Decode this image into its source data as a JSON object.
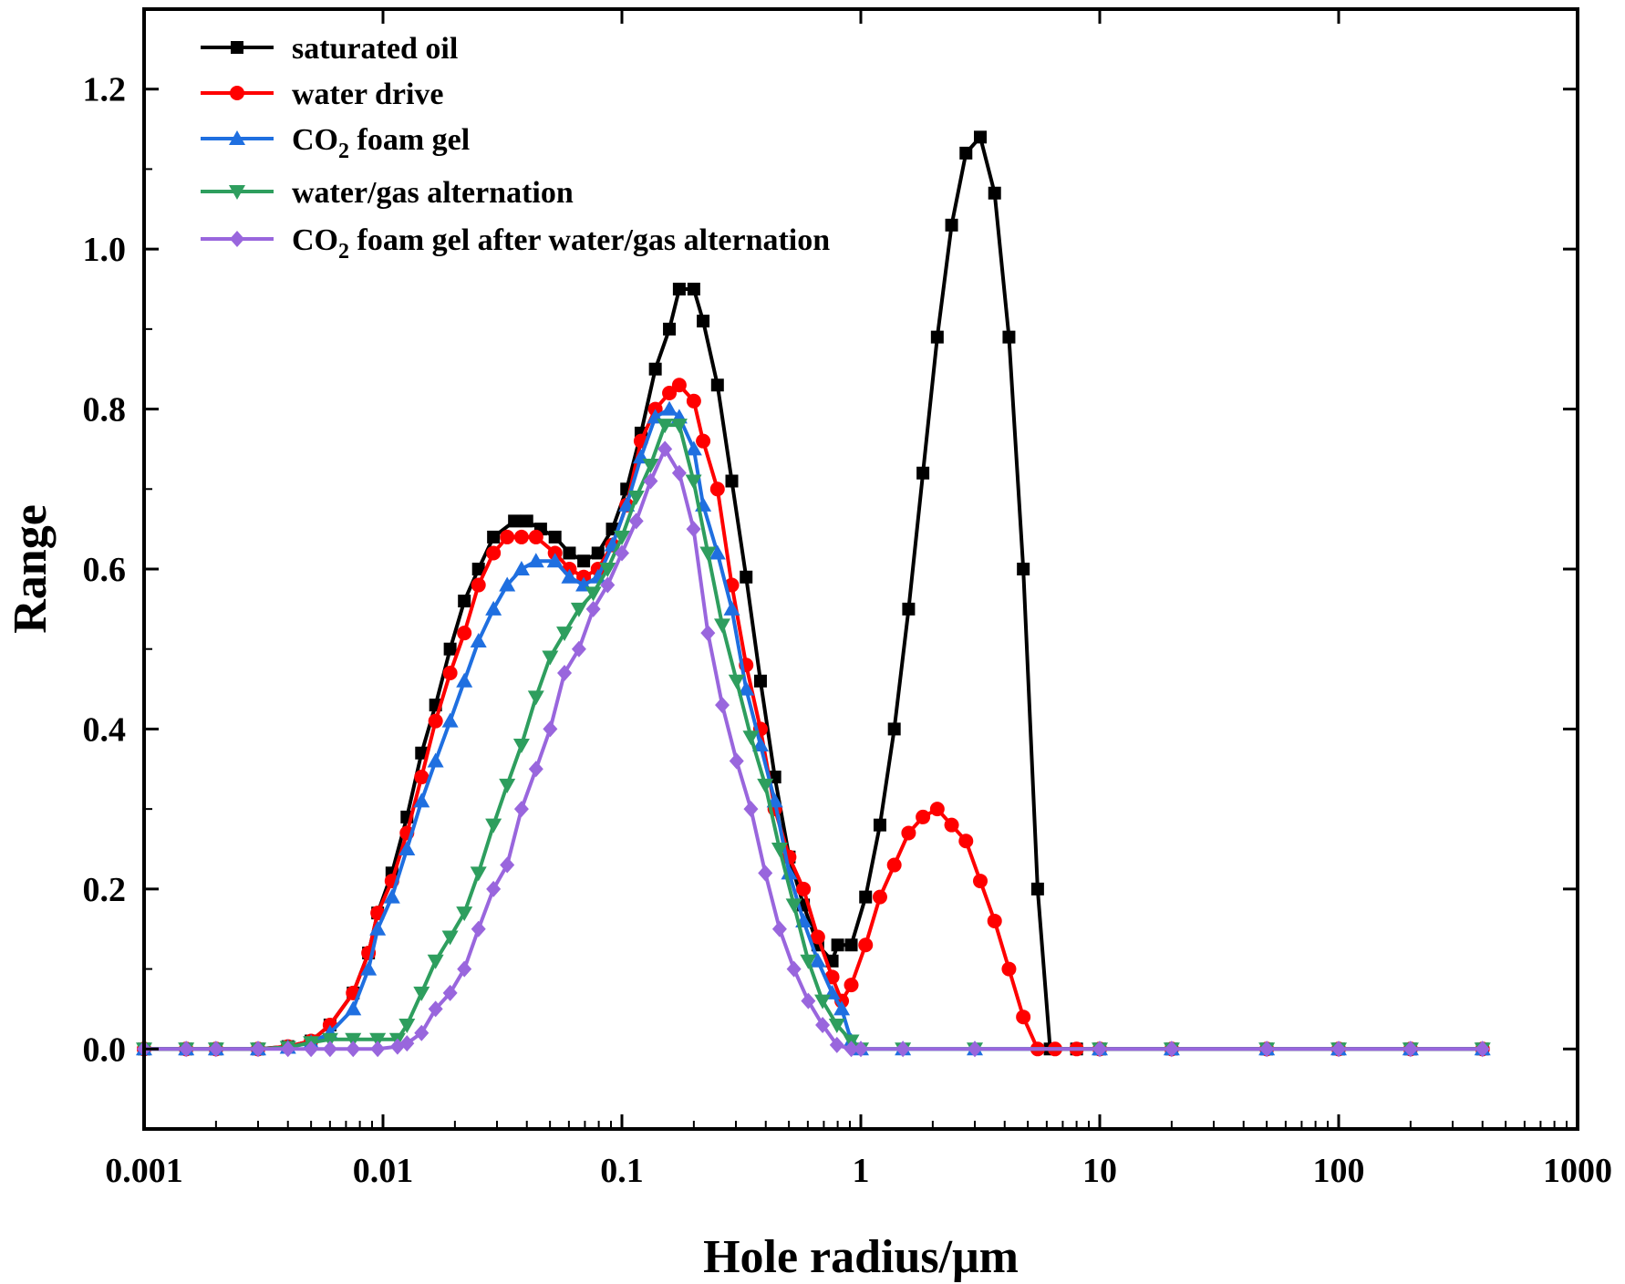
{
  "chart_data": {
    "type": "line",
    "xlabel": "Hole radius/μm",
    "ylabel": "Range",
    "xscale": "log",
    "xlim": [
      0.001,
      1000
    ],
    "ylim": [
      -0.1,
      1.3
    ],
    "xticks": [
      {
        "value": 0.001,
        "label": "0.001"
      },
      {
        "value": 0.01,
        "label": "0.01"
      },
      {
        "value": 0.1,
        "label": "0.1"
      },
      {
        "value": 1,
        "label": "1"
      },
      {
        "value": 10,
        "label": "10"
      },
      {
        "value": 100,
        "label": "100"
      },
      {
        "value": 1000,
        "label": "1000"
      }
    ],
    "yticks": [
      {
        "value": 0.0,
        "label": "0.0"
      },
      {
        "value": 0.2,
        "label": "0.2"
      },
      {
        "value": 0.4,
        "label": "0.4"
      },
      {
        "value": 0.6,
        "label": "0.6"
      },
      {
        "value": 0.8,
        "label": "0.8"
      },
      {
        "value": 1.0,
        "label": "1.0"
      },
      {
        "value": 1.2,
        "label": "1.2"
      }
    ],
    "legend_position": "top-left",
    "series": [
      {
        "name": "saturated oil",
        "legend_main": "saturated oil",
        "legend_sub": "",
        "legend_rest": "",
        "color": "#000000",
        "marker": "square",
        "points": [
          [
            0.001,
            0
          ],
          [
            0.0015,
            0
          ],
          [
            0.002,
            0
          ],
          [
            0.003,
            0
          ],
          [
            0.004,
            0.003
          ],
          [
            0.005,
            0.01
          ],
          [
            0.006,
            0.03
          ],
          [
            0.0075,
            0.07
          ],
          [
            0.0087,
            0.12
          ],
          [
            0.0095,
            0.17
          ],
          [
            0.0109,
            0.22
          ],
          [
            0.0126,
            0.29
          ],
          [
            0.0145,
            0.37
          ],
          [
            0.0166,
            0.43
          ],
          [
            0.0191,
            0.5
          ],
          [
            0.0219,
            0.56
          ],
          [
            0.0251,
            0.6
          ],
          [
            0.029,
            0.64
          ],
          [
            0.0355,
            0.66
          ],
          [
            0.04,
            0.66
          ],
          [
            0.0457,
            0.65
          ],
          [
            0.0525,
            0.64
          ],
          [
            0.0603,
            0.62
          ],
          [
            0.0692,
            0.61
          ],
          [
            0.0794,
            0.62
          ],
          [
            0.0912,
            0.65
          ],
          [
            0.1047,
            0.7
          ],
          [
            0.1202,
            0.77
          ],
          [
            0.138,
            0.85
          ],
          [
            0.158,
            0.9
          ],
          [
            0.1738,
            0.95
          ],
          [
            0.2,
            0.95
          ],
          [
            0.2188,
            0.91
          ],
          [
            0.2512,
            0.83
          ],
          [
            0.2884,
            0.71
          ],
          [
            0.3311,
            0.59
          ],
          [
            0.3802,
            0.46
          ],
          [
            0.4365,
            0.34
          ],
          [
            0.5012,
            0.24
          ],
          [
            0.5754,
            0.18
          ],
          [
            0.6607,
            0.13
          ],
          [
            0.7586,
            0.11
          ],
          [
            0.8,
            0.13
          ],
          [
            0.912,
            0.13
          ],
          [
            1.0471,
            0.19
          ],
          [
            1.2023,
            0.28
          ],
          [
            1.3804,
            0.4
          ],
          [
            1.5849,
            0.55
          ],
          [
            1.8197,
            0.72
          ],
          [
            2.0893,
            0.89
          ],
          [
            2.3988,
            1.03
          ],
          [
            2.7542,
            1.12
          ],
          [
            3.1623,
            1.14
          ],
          [
            3.6308,
            1.07
          ],
          [
            4.1687,
            0.89
          ],
          [
            4.7863,
            0.6
          ],
          [
            5.4954,
            0.2
          ],
          [
            6.2,
            0.0
          ],
          [
            8,
            0
          ],
          [
            10,
            0
          ],
          [
            20,
            0
          ],
          [
            50,
            0
          ],
          [
            100,
            0
          ],
          [
            200,
            0
          ],
          [
            400,
            0
          ]
        ]
      },
      {
        "name": "water drive",
        "legend_main": "water drive",
        "legend_sub": "",
        "legend_rest": "",
        "color": "#ff0000",
        "marker": "circle",
        "points": [
          [
            0.001,
            0
          ],
          [
            0.0015,
            0
          ],
          [
            0.002,
            0
          ],
          [
            0.003,
            0
          ],
          [
            0.004,
            0.003
          ],
          [
            0.005,
            0.01
          ],
          [
            0.006,
            0.03
          ],
          [
            0.0075,
            0.07
          ],
          [
            0.0087,
            0.12
          ],
          [
            0.0095,
            0.17
          ],
          [
            0.0109,
            0.21
          ],
          [
            0.0126,
            0.27
          ],
          [
            0.0145,
            0.34
          ],
          [
            0.0166,
            0.41
          ],
          [
            0.0191,
            0.47
          ],
          [
            0.0219,
            0.52
          ],
          [
            0.0251,
            0.58
          ],
          [
            0.029,
            0.62
          ],
          [
            0.0331,
            0.64
          ],
          [
            0.038,
            0.64
          ],
          [
            0.0437,
            0.64
          ],
          [
            0.0525,
            0.62
          ],
          [
            0.0603,
            0.6
          ],
          [
            0.0692,
            0.59
          ],
          [
            0.0794,
            0.6
          ],
          [
            0.0912,
            0.63
          ],
          [
            0.1047,
            0.68
          ],
          [
            0.1202,
            0.76
          ],
          [
            0.138,
            0.8
          ],
          [
            0.158,
            0.82
          ],
          [
            0.1738,
            0.83
          ],
          [
            0.2,
            0.81
          ],
          [
            0.2188,
            0.76
          ],
          [
            0.2512,
            0.7
          ],
          [
            0.2884,
            0.58
          ],
          [
            0.3311,
            0.48
          ],
          [
            0.3802,
            0.4
          ],
          [
            0.4365,
            0.3
          ],
          [
            0.5012,
            0.24
          ],
          [
            0.5754,
            0.2
          ],
          [
            0.6607,
            0.14
          ],
          [
            0.7586,
            0.09
          ],
          [
            0.8318,
            0.06
          ],
          [
            0.912,
            0.08
          ],
          [
            1.0471,
            0.13
          ],
          [
            1.2023,
            0.19
          ],
          [
            1.3804,
            0.23
          ],
          [
            1.5849,
            0.27
          ],
          [
            1.8197,
            0.29
          ],
          [
            2.0893,
            0.3
          ],
          [
            2.3988,
            0.28
          ],
          [
            2.7542,
            0.26
          ],
          [
            3.1623,
            0.21
          ],
          [
            3.6308,
            0.16
          ],
          [
            4.1687,
            0.1
          ],
          [
            4.7863,
            0.04
          ],
          [
            5.4954,
            0.0
          ],
          [
            6.5,
            0
          ],
          [
            8,
            0
          ],
          [
            10,
            0
          ],
          [
            20,
            0
          ],
          [
            50,
            0
          ],
          [
            100,
            0
          ],
          [
            200,
            0
          ],
          [
            400,
            0
          ]
        ]
      },
      {
        "name": "CO2 foam gel",
        "legend_main": "CO",
        "legend_sub": "2",
        "legend_rest": " foam gel",
        "color": "#1f6fe0",
        "marker": "triangle-up",
        "points": [
          [
            0.001,
            0
          ],
          [
            0.0015,
            0
          ],
          [
            0.002,
            0
          ],
          [
            0.003,
            0
          ],
          [
            0.004,
            0.002
          ],
          [
            0.005,
            0.008
          ],
          [
            0.006,
            0.02
          ],
          [
            0.0075,
            0.05
          ],
          [
            0.0087,
            0.1
          ],
          [
            0.0095,
            0.15
          ],
          [
            0.0109,
            0.19
          ],
          [
            0.0126,
            0.25
          ],
          [
            0.0145,
            0.31
          ],
          [
            0.0166,
            0.36
          ],
          [
            0.0191,
            0.41
          ],
          [
            0.0219,
            0.46
          ],
          [
            0.0251,
            0.51
          ],
          [
            0.029,
            0.55
          ],
          [
            0.0331,
            0.58
          ],
          [
            0.038,
            0.6
          ],
          [
            0.0437,
            0.61
          ],
          [
            0.0525,
            0.61
          ],
          [
            0.0603,
            0.59
          ],
          [
            0.0692,
            0.58
          ],
          [
            0.0794,
            0.59
          ],
          [
            0.0912,
            0.63
          ],
          [
            0.1047,
            0.68
          ],
          [
            0.1202,
            0.74
          ],
          [
            0.138,
            0.79
          ],
          [
            0.158,
            0.8
          ],
          [
            0.1738,
            0.79
          ],
          [
            0.2,
            0.75
          ],
          [
            0.2188,
            0.68
          ],
          [
            0.2512,
            0.62
          ],
          [
            0.2884,
            0.55
          ],
          [
            0.3311,
            0.45
          ],
          [
            0.3802,
            0.38
          ],
          [
            0.4365,
            0.31
          ],
          [
            0.5012,
            0.22
          ],
          [
            0.5754,
            0.16
          ],
          [
            0.6607,
            0.11
          ],
          [
            0.7586,
            0.07
          ],
          [
            0.8318,
            0.05
          ],
          [
            0.912,
            0.01
          ],
          [
            1.0,
            0
          ],
          [
            1.5,
            0
          ],
          [
            3,
            0
          ],
          [
            10,
            0
          ],
          [
            20,
            0
          ],
          [
            50,
            0
          ],
          [
            100,
            0
          ],
          [
            200,
            0
          ],
          [
            400,
            0
          ]
        ]
      },
      {
        "name": "water/gas alternation",
        "legend_main": "water/gas alternation",
        "legend_sub": "",
        "legend_rest": "",
        "color": "#2e9e5e",
        "marker": "triangle-down",
        "points": [
          [
            0.001,
            0
          ],
          [
            0.0015,
            0
          ],
          [
            0.002,
            0
          ],
          [
            0.003,
            0
          ],
          [
            0.004,
            0.002
          ],
          [
            0.005,
            0.008
          ],
          [
            0.006,
            0.012
          ],
          [
            0.0075,
            0.012
          ],
          [
            0.0095,
            0.012
          ],
          [
            0.0115,
            0.012
          ],
          [
            0.0126,
            0.03
          ],
          [
            0.0145,
            0.07
          ],
          [
            0.0166,
            0.11
          ],
          [
            0.0191,
            0.14
          ],
          [
            0.0219,
            0.17
          ],
          [
            0.0251,
            0.22
          ],
          [
            0.029,
            0.28
          ],
          [
            0.0331,
            0.33
          ],
          [
            0.038,
            0.38
          ],
          [
            0.0437,
            0.44
          ],
          [
            0.0501,
            0.49
          ],
          [
            0.0575,
            0.52
          ],
          [
            0.0661,
            0.55
          ],
          [
            0.0759,
            0.57
          ],
          [
            0.0871,
            0.6
          ],
          [
            0.1,
            0.64
          ],
          [
            0.1148,
            0.69
          ],
          [
            0.1318,
            0.73
          ],
          [
            0.1514,
            0.78
          ],
          [
            0.1738,
            0.78
          ],
          [
            0.1995,
            0.71
          ],
          [
            0.2291,
            0.62
          ],
          [
            0.263,
            0.53
          ],
          [
            0.302,
            0.46
          ],
          [
            0.3467,
            0.39
          ],
          [
            0.3981,
            0.33
          ],
          [
            0.4571,
            0.25
          ],
          [
            0.5248,
            0.18
          ],
          [
            0.6026,
            0.11
          ],
          [
            0.6918,
            0.06
          ],
          [
            0.7943,
            0.03
          ],
          [
            0.912,
            0.01
          ],
          [
            1.0,
            0
          ],
          [
            1.5,
            0
          ],
          [
            3,
            0
          ],
          [
            10,
            0
          ],
          [
            20,
            0
          ],
          [
            50,
            0
          ],
          [
            100,
            0
          ],
          [
            200,
            0
          ],
          [
            400,
            0
          ]
        ]
      },
      {
        "name": "CO2 foam gel after water/gas alternation",
        "legend_main": "CO",
        "legend_sub": "2",
        "legend_rest": " foam gel after water/gas alternation",
        "color": "#9966dd",
        "marker": "diamond",
        "points": [
          [
            0.001,
            0
          ],
          [
            0.0015,
            0
          ],
          [
            0.002,
            0
          ],
          [
            0.003,
            0
          ],
          [
            0.004,
            0
          ],
          [
            0.005,
            0
          ],
          [
            0.006,
            0
          ],
          [
            0.0075,
            0
          ],
          [
            0.0095,
            0
          ],
          [
            0.0115,
            0.003
          ],
          [
            0.0126,
            0.007
          ],
          [
            0.0145,
            0.02
          ],
          [
            0.0166,
            0.05
          ],
          [
            0.0191,
            0.07
          ],
          [
            0.0219,
            0.1
          ],
          [
            0.0251,
            0.15
          ],
          [
            0.029,
            0.2
          ],
          [
            0.0331,
            0.23
          ],
          [
            0.038,
            0.3
          ],
          [
            0.0437,
            0.35
          ],
          [
            0.0501,
            0.4
          ],
          [
            0.0575,
            0.47
          ],
          [
            0.0661,
            0.5
          ],
          [
            0.0759,
            0.55
          ],
          [
            0.0871,
            0.58
          ],
          [
            0.1,
            0.62
          ],
          [
            0.1148,
            0.66
          ],
          [
            0.1318,
            0.71
          ],
          [
            0.1514,
            0.75
          ],
          [
            0.1738,
            0.72
          ],
          [
            0.1995,
            0.65
          ],
          [
            0.2291,
            0.52
          ],
          [
            0.263,
            0.43
          ],
          [
            0.302,
            0.36
          ],
          [
            0.3467,
            0.3
          ],
          [
            0.3981,
            0.22
          ],
          [
            0.4571,
            0.15
          ],
          [
            0.5248,
            0.1
          ],
          [
            0.6026,
            0.06
          ],
          [
            0.6918,
            0.03
          ],
          [
            0.7943,
            0.005
          ],
          [
            0.912,
            0
          ],
          [
            1.0,
            0
          ],
          [
            1.5,
            0
          ],
          [
            3,
            0
          ],
          [
            10,
            0
          ],
          [
            20,
            0
          ],
          [
            50,
            0
          ],
          [
            100,
            0
          ],
          [
            200,
            0
          ],
          [
            400,
            0
          ]
        ]
      }
    ]
  }
}
